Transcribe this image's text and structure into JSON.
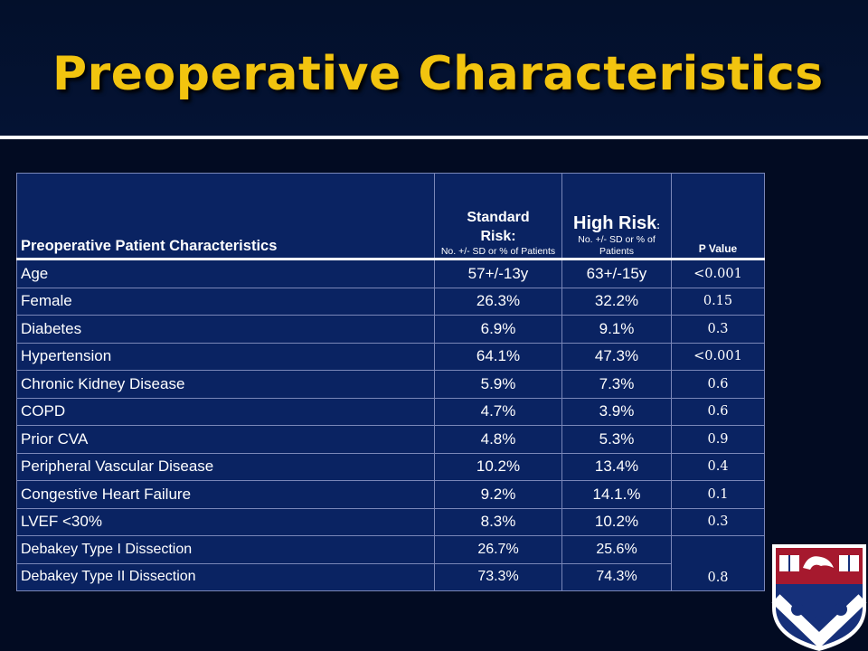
{
  "slide": {
    "title": "Preoperative Characteristics"
  },
  "table": {
    "header": {
      "col0": "Preoperative Patient Characteristics",
      "col1_line1": "Standard",
      "col1_line2": "Risk:",
      "col1_sub": "No. +/- SD or % of Patients",
      "col2_main": "High Risk",
      "col2_colon": ":",
      "col2_sub": "No. +/- SD or % of Patients",
      "col3": "P Value"
    },
    "rows": [
      {
        "label": "Age",
        "standard": "57+/-13y",
        "high": "63+/-15y",
        "p": "<0.001"
      },
      {
        "label": "Female",
        "standard": "26.3%",
        "high": "32.2%",
        "p": "0.15"
      },
      {
        "label": "Diabetes",
        "standard": "6.9%",
        "high": "9.1%",
        "p": "0.3"
      },
      {
        "label": "Hypertension",
        "standard": "64.1%",
        "high": "47.3%",
        "p": "<0.001"
      },
      {
        "label": "Chronic Kidney Disease",
        "standard": "5.9%",
        "high": "7.3%",
        "p": "0.6"
      },
      {
        "label": "COPD",
        "standard": "4.7%",
        "high": "3.9%",
        "p": "0.6"
      },
      {
        "label": "Prior CVA",
        "standard": "4.8%",
        "high": "5.3%",
        "p": "0.9"
      },
      {
        "label": "Peripheral Vascular Disease",
        "standard": "10.2%",
        "high": "13.4%",
        "p": "0.4"
      },
      {
        "label": "Congestive Heart Failure",
        "standard": "9.2%",
        "high": "14.1.%",
        "p": "0.1"
      },
      {
        "label": "LVEF <30%",
        "standard": "8.3%",
        "high": "10.2%",
        "p": "0.3"
      },
      {
        "label": "Debakey Type I Dissection",
        "standard": "26.7%",
        "high": "25.6%"
      },
      {
        "label": "Debakey Type II Dissection",
        "standard": "73.3%",
        "high": "74.3%",
        "p": "0.8"
      }
    ]
  },
  "logo": {
    "icon": "university-shield-icon"
  },
  "colors": {
    "title": "#f2c40f",
    "background": "#020b22",
    "table": "#0a2362",
    "shield_red": "#a6192e",
    "shield_blue": "#16307a"
  }
}
